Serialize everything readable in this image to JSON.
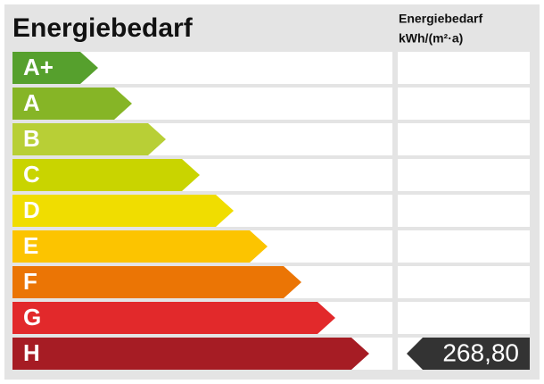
{
  "title": "Energiebedarf",
  "column_header": [
    "Energiebedarf",
    "kWh/(m²·a)"
  ],
  "classes": [
    {
      "label": "A+",
      "color": "#56a02d"
    },
    {
      "label": "A",
      "color": "#86b526"
    },
    {
      "label": "B",
      "color": "#b8cf36"
    },
    {
      "label": "C",
      "color": "#c9d400"
    },
    {
      "label": "D",
      "color": "#f0dd00"
    },
    {
      "label": "E",
      "color": "#fcc400"
    },
    {
      "label": "F",
      "color": "#eb7505"
    },
    {
      "label": "G",
      "color": "#e2292b"
    },
    {
      "label": "H",
      "color": "#a61c24",
      "value": "268,80",
      "value_color": "#333333"
    }
  ]
}
